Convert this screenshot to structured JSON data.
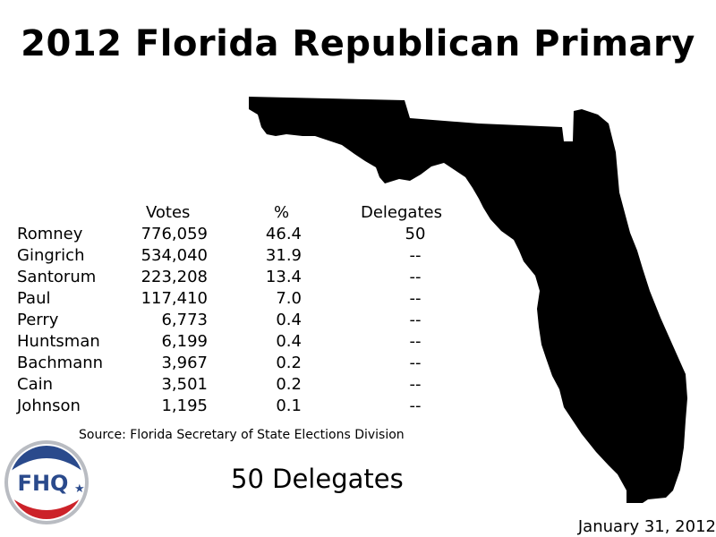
{
  "title": "2012 Florida Republican Primary",
  "chart_data": {
    "type": "table",
    "columns": [
      "",
      "Votes",
      "%",
      "Delegates"
    ],
    "rows": [
      {
        "candidate": "Romney",
        "votes": "776,059",
        "pct": "46.4",
        "delegates": "50"
      },
      {
        "candidate": "Gingrich",
        "votes": "534,040",
        "pct": "31.9",
        "delegates": "--"
      },
      {
        "candidate": "Santorum",
        "votes": "223,208",
        "pct": "13.4",
        "delegates": "--"
      },
      {
        "candidate": "Paul",
        "votes": "117,410",
        "pct": "7.0",
        "delegates": "--"
      },
      {
        "candidate": "Perry",
        "votes": "6,773",
        "pct": "0.4",
        "delegates": "--"
      },
      {
        "candidate": "Huntsman",
        "votes": "6,199",
        "pct": "0.4",
        "delegates": "--"
      },
      {
        "candidate": "Bachmann",
        "votes": "3,967",
        "pct": "0.2",
        "delegates": "--"
      },
      {
        "candidate": "Cain",
        "votes": "3,501",
        "pct": "0.2",
        "delegates": "--"
      },
      {
        "candidate": "Johnson",
        "votes": "1,195",
        "pct": "0.1",
        "delegates": "--"
      }
    ]
  },
  "source": "Source: Florida Secretary of State Elections Division",
  "delegate_total": "50 Delegates",
  "date": "January 31, 2012",
  "logo": {
    "text": "FHQ",
    "colors": {
      "ring": "#b9bcc2",
      "top": "#2a4a8c",
      "bottom": "#cc2229"
    }
  },
  "map_color": "#000000"
}
